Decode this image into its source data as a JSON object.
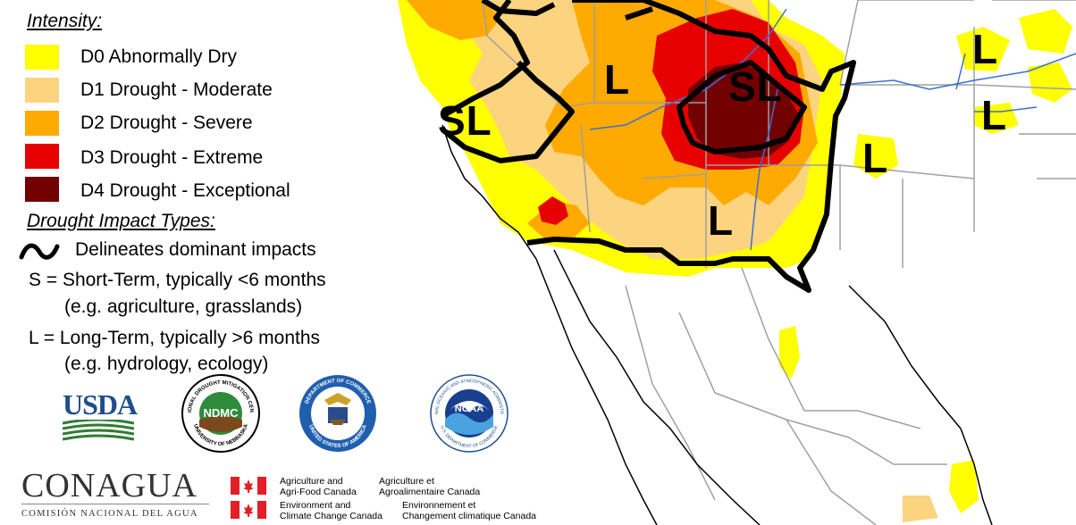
{
  "colors": {
    "d0": "#ffff00",
    "d1": "#fcd37f",
    "d2": "#ffaa00",
    "d3": "#e60000",
    "d4": "#730000",
    "usda_blue": "#1f4e8c",
    "usda_green": "#2e7d32",
    "canada_red": "#e31e24"
  },
  "legend": {
    "intensity_title": "Intensity:",
    "categories": [
      {
        "code": "D0",
        "label": "D0 Abnormally Dry"
      },
      {
        "code": "D1",
        "label": "D1 Drought - Moderate"
      },
      {
        "code": "D2",
        "label": "D2 Drought - Severe"
      },
      {
        "code": "D3",
        "label": "D3 Drought - Extreme"
      },
      {
        "code": "D4",
        "label": "D4 Drought - Exceptional"
      }
    ],
    "impact_title": "Drought Impact Types:",
    "delineates": "Delineates dominant impacts",
    "short_term": "S = Short-Term, typically <6 months",
    "short_term_examples": "(e.g. agriculture, grasslands)",
    "long_term": "L = Long-Term, typically >6 months",
    "long_term_examples": "(e.g. hydrology, ecology)"
  },
  "logos": {
    "usda": "USDA",
    "ndmc": "NDMC",
    "ndmc_ring_top": "NATIONAL DROUGHT MITIGATION CENTER",
    "ndmc_ring_bottom": "UNIVERSITY OF NEBRASKA",
    "commerce_ring_top": "DEPARTMENT OF COMMERCE",
    "commerce_ring_bottom": "UNITED STATES OF AMERICA",
    "noaa": "NOAA",
    "noaa_ring_top": "NATIONAL OCEANIC AND ATMOSPHERIC ADMINISTRATION",
    "noaa_ring_bottom": "U.S. DEPARTMENT OF COMMERCE",
    "conagua": "CONAGUA",
    "conagua_sub": "COMISIÓN NACIONAL DEL AGUA",
    "agri_en_1": "Agriculture and",
    "agri_en_2": "Agri-Food Canada",
    "agri_fr_1": "Agriculture et",
    "agri_fr_2": "Agroalimentaire Canada",
    "env_en_1": "Environment and",
    "env_en_2": "Climate Change Canada",
    "env_fr_1": "Environnement et",
    "env_fr_2": "Changement climatique Canada"
  },
  "map_labels": {
    "sl_west": "SL",
    "l_nevada": "L",
    "sl_colorado": "SL",
    "l_nm": "L",
    "l_oklahoma": "L",
    "l_north_1": "L",
    "l_north_2": "L"
  }
}
